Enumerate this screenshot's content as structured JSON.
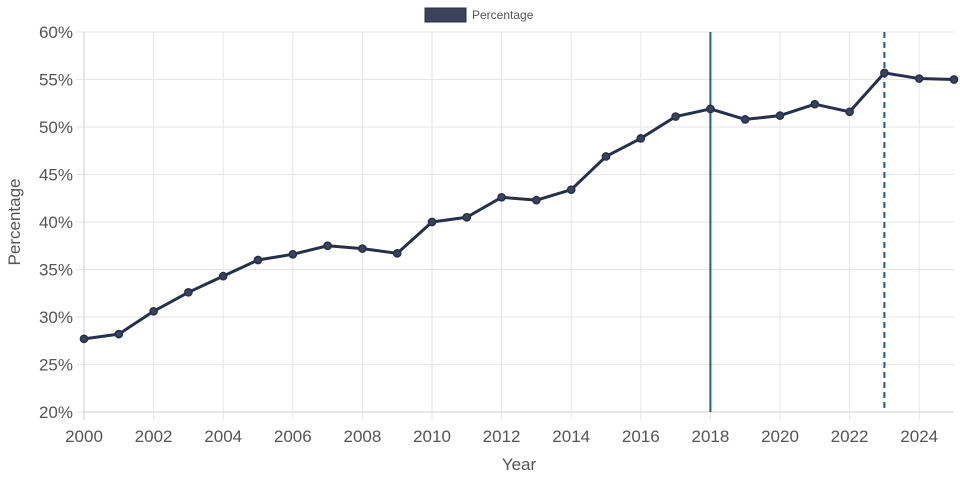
{
  "chart_data": {
    "type": "line",
    "title": "",
    "xlabel": "Year",
    "ylabel": "Percentage",
    "xlim": [
      2000,
      2025
    ],
    "ylim": [
      20,
      60
    ],
    "y_tick_suffix": "%",
    "x_ticks": [
      2000,
      2002,
      2004,
      2006,
      2008,
      2010,
      2012,
      2014,
      2016,
      2018,
      2020,
      2022,
      2024
    ],
    "y_ticks": [
      20,
      25,
      30,
      35,
      40,
      45,
      50,
      55,
      60
    ],
    "grid": true,
    "legend_position": "top-center",
    "series": [
      {
        "name": "Percentage",
        "color": "#283049",
        "legend_fill": "#3b4259",
        "x": [
          2000,
          2001,
          2002,
          2003,
          2004,
          2005,
          2006,
          2007,
          2008,
          2009,
          2010,
          2011,
          2012,
          2013,
          2014,
          2015,
          2016,
          2017,
          2018,
          2019,
          2020,
          2021,
          2022,
          2023,
          2024,
          2025
        ],
        "values": [
          27.7,
          28.2,
          30.6,
          32.6,
          34.3,
          36.0,
          36.6,
          37.5,
          37.2,
          36.7,
          40.0,
          40.5,
          42.6,
          42.3,
          43.4,
          46.9,
          48.8,
          51.1,
          51.9,
          50.8,
          51.2,
          52.4,
          51.6,
          55.7,
          55.1,
          55.0
        ]
      }
    ],
    "reference_lines": [
      {
        "x": 2018,
        "style": "solid",
        "color": "#1f5b8c"
      },
      {
        "x": 2023,
        "style": "dashed",
        "color": "#1f5b8c"
      }
    ]
  }
}
